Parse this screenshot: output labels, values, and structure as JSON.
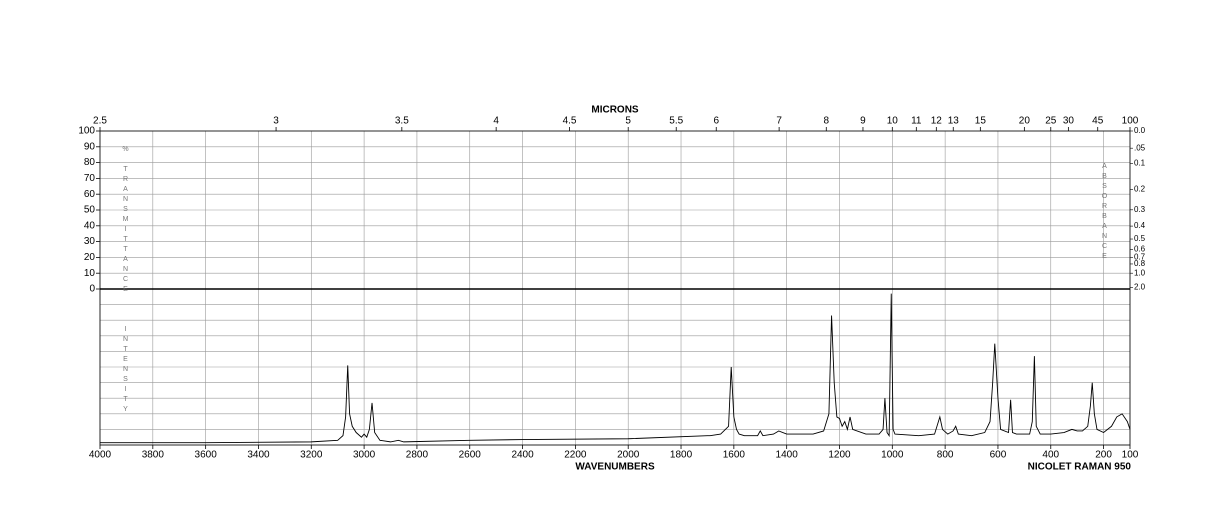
{
  "chart_data": {
    "type": "line",
    "top_axis_label": "MICRONS",
    "x_label": "WAVENUMBERS",
    "instrument_label": "NICOLET RAMAN 950",
    "left_axis_label": "% TRANSMITTANCE",
    "right_axis_label": "ABSORBANCE",
    "lower_axis_label": "INTENSITY",
    "color": "#000000",
    "grid": true,
    "xlim": [
      4000,
      100
    ],
    "xticks": [
      4000,
      3800,
      3600,
      3400,
      3200,
      3000,
      2800,
      2600,
      2400,
      2200,
      2000,
      1800,
      1600,
      1400,
      1200,
      1000,
      800,
      600,
      400,
      200,
      100
    ],
    "x2ticks": [
      2.5,
      3,
      3.5,
      4,
      4.5,
      5,
      5.5,
      6,
      7,
      8,
      9,
      10,
      11,
      12,
      13,
      15,
      20,
      25,
      30,
      45,
      100
    ],
    "ylim": [
      0,
      100
    ],
    "yticks": [
      0,
      10,
      20,
      30,
      40,
      50,
      60,
      70,
      80,
      90,
      100
    ],
    "y2ticks": [
      {
        "value": 0,
        "label": "0.0"
      },
      {
        "value": 0.05,
        "label": ".05"
      },
      0.1,
      0.2,
      0.3,
      0.4,
      0.5,
      0.6,
      0.7,
      0.8,
      {
        "value": 1,
        "label": "1.0"
      },
      {
        "value": 2,
        "label": "2.0"
      }
    ],
    "intensity_ylim": [
      0,
      100
    ],
    "x": [
      4000,
      3600,
      3200,
      3100,
      3080,
      3070,
      3062,
      3055,
      3045,
      3030,
      3010,
      3000,
      2990,
      2980,
      2970,
      2960,
      2940,
      2900,
      2870,
      2850,
      2600,
      2400,
      2000,
      1700,
      1690,
      1650,
      1620,
      1610,
      1600,
      1590,
      1580,
      1560,
      1510,
      1500,
      1490,
      1450,
      1430,
      1400,
      1300,
      1260,
      1240,
      1230,
      1220,
      1210,
      1200,
      1190,
      1180,
      1170,
      1160,
      1150,
      1100,
      1050,
      1035,
      1028,
      1020,
      1012,
      1004,
      997,
      990,
      900,
      840,
      820,
      810,
      790,
      770,
      760,
      750,
      700,
      650,
      630,
      620,
      612,
      600,
      590,
      560,
      552,
      545,
      530,
      480,
      470,
      462,
      455,
      440,
      400,
      350,
      320,
      300,
      280,
      260,
      250,
      243,
      235,
      225,
      200,
      170,
      150,
      130,
      110,
      100
    ],
    "values": [
      1.5,
      1.5,
      2,
      3,
      6,
      18,
      51,
      20,
      12,
      8,
      5,
      7,
      5,
      10,
      27,
      8,
      3,
      2,
      3,
      2,
      3,
      3.5,
      4,
      6,
      6,
      7,
      12,
      50,
      18,
      10,
      7,
      6,
      6,
      9,
      6,
      7,
      9,
      7,
      7,
      9,
      20,
      83,
      40,
      18,
      17,
      12,
      15,
      10,
      18,
      10,
      7,
      7,
      10,
      30,
      8,
      6,
      97,
      10,
      7,
      6,
      7,
      18,
      10,
      7,
      9,
      12,
      7,
      6,
      8,
      15,
      40,
      65,
      30,
      10,
      8,
      29,
      8,
      7,
      7,
      15,
      57,
      12,
      7,
      7,
      8,
      10,
      9,
      9,
      12,
      25,
      40,
      20,
      10,
      8,
      12,
      18,
      20,
      15,
      10
    ]
  }
}
